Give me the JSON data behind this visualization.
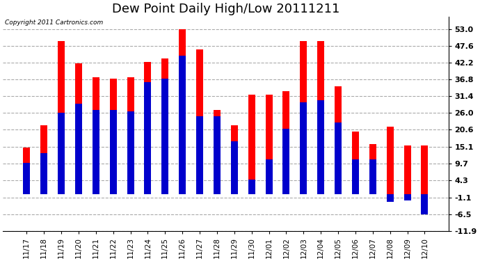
{
  "title": "Dew Point Daily High/Low 20111211",
  "copyright": "Copyright 2011 Cartronics.com",
  "dates": [
    "11/17",
    "11/18",
    "11/19",
    "11/20",
    "11/21",
    "11/22",
    "11/23",
    "11/24",
    "11/25",
    "11/26",
    "11/27",
    "11/28",
    "11/29",
    "11/30",
    "12/01",
    "12/02",
    "12/03",
    "12/04",
    "12/05",
    "12/06",
    "12/07",
    "12/08",
    "12/09",
    "12/10"
  ],
  "highs": [
    15.0,
    22.0,
    49.0,
    42.0,
    37.5,
    37.0,
    37.5,
    42.5,
    43.5,
    53.0,
    46.5,
    27.0,
    22.0,
    32.0,
    32.0,
    33.0,
    49.0,
    49.0,
    34.5,
    20.0,
    16.0,
    21.5,
    15.5,
    15.5
  ],
  "lows": [
    10.0,
    13.0,
    26.0,
    29.0,
    27.0,
    27.0,
    26.5,
    36.0,
    37.0,
    44.5,
    25.0,
    25.0,
    17.0,
    4.5,
    11.0,
    21.0,
    29.5,
    30.0,
    23.0,
    11.0,
    11.0,
    -2.5,
    -2.0,
    -6.5
  ],
  "bar_color_high": "#ff0000",
  "bar_color_low": "#0000cc",
  "bg_color": "#ffffff",
  "plot_bg_color": "#ffffff",
  "grid_color": "#aaaaaa",
  "ylim_min": -11.9,
  "ylim_max": 57.0,
  "yticks": [
    -11.9,
    -6.5,
    -1.1,
    4.3,
    9.7,
    15.1,
    20.6,
    26.0,
    31.4,
    36.8,
    42.2,
    47.6,
    53.0
  ],
  "ytick_labels": [
    "-11.9",
    "-6.5",
    "-1.1",
    "4.3",
    "9.7",
    "15.1",
    "20.6",
    "26.0",
    "31.4",
    "36.8",
    "42.2",
    "47.6",
    "53.0"
  ],
  "title_fontsize": 13,
  "bar_width": 0.4,
  "figwidth": 6.9,
  "figheight": 3.75,
  "dpi": 100
}
